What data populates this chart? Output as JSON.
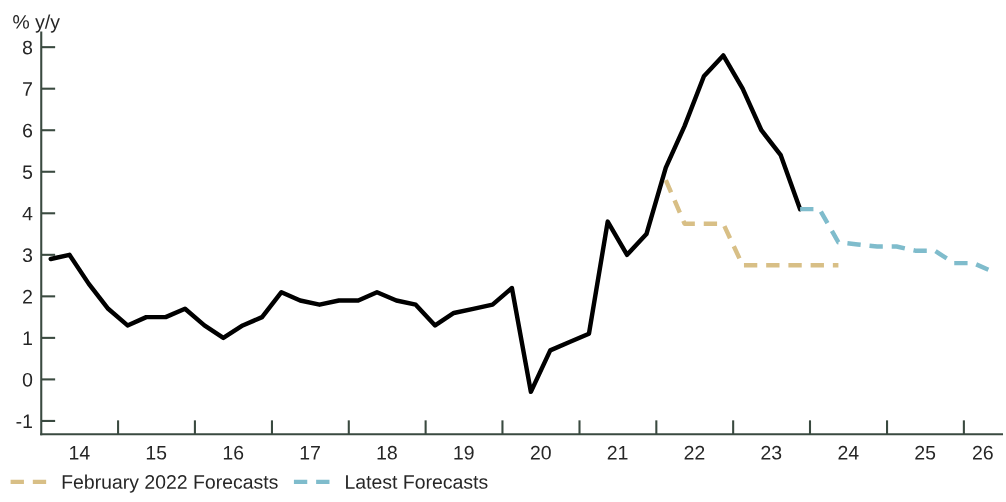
{
  "chart_data": {
    "type": "line",
    "ylabel": "% y/y",
    "xlim": [
      "2014-01-01",
      "2026-07-01"
    ],
    "ylim": [
      -1.32,
      8.35
    ],
    "yticks": [
      -1,
      0,
      1,
      2,
      3,
      4,
      5,
      6,
      7,
      8
    ],
    "xticks": [
      {
        "value": "2015-01-01",
        "label": null
      },
      {
        "value": "2016-01-01",
        "label": null
      },
      {
        "value": "2017-01-01",
        "label": null
      },
      {
        "value": "2018-01-01",
        "label": null
      },
      {
        "value": "2019-01-01",
        "label": null
      },
      {
        "value": "2020-01-01",
        "label": null
      },
      {
        "value": "2021-01-01",
        "label": null
      },
      {
        "value": "2022-01-01",
        "label": null
      },
      {
        "value": "2023-01-01",
        "label": null
      },
      {
        "value": "2024-01-01",
        "label": null
      },
      {
        "value": "2025-01-01",
        "label": null
      },
      {
        "value": "2026-01-01",
        "label": null
      },
      {
        "value": "2014-07-01",
        "label": "14"
      },
      {
        "value": "2015-07-01",
        "label": "15"
      },
      {
        "value": "2016-07-01",
        "label": "16"
      },
      {
        "value": "2017-07-01",
        "label": "17"
      },
      {
        "value": "2018-07-01",
        "label": "18"
      },
      {
        "value": "2019-07-01",
        "label": "19"
      },
      {
        "value": "2020-07-01",
        "label": "20"
      },
      {
        "value": "2021-07-01",
        "label": "21"
      },
      {
        "value": "2022-07-01",
        "label": "22"
      },
      {
        "value": "2023-07-01",
        "label": "23"
      },
      {
        "value": "2024-07-01",
        "label": "24"
      },
      {
        "value": "2025-07-01",
        "label": "25"
      },
      {
        "value": "2026-04-01",
        "label": "26"
      }
    ],
    "grid": false,
    "legend": "bottom",
    "series": [
      {
        "color": "#000000",
        "line_style": "solid",
        "x": [
          "2014-02-15",
          "2014-05-15",
          "2014-08-15",
          "2014-11-15",
          "2015-02-15",
          "2015-05-15",
          "2015-08-15",
          "2015-11-15",
          "2016-02-15",
          "2016-05-15",
          "2016-08-15",
          "2016-11-15",
          "2017-02-15",
          "2017-05-15",
          "2017-08-15",
          "2017-11-15",
          "2018-02-15",
          "2018-05-15",
          "2018-08-15",
          "2018-11-15",
          "2019-02-15",
          "2019-05-15",
          "2019-08-15",
          "2019-11-15",
          "2020-02-15",
          "2020-05-15",
          "2020-08-15",
          "2020-11-15",
          "2021-02-15",
          "2021-05-15",
          "2021-08-15",
          "2021-11-15",
          "2022-02-15",
          "2022-05-15",
          "2022-08-15",
          "2022-11-15",
          "2023-02-15",
          "2023-05-15",
          "2023-08-15",
          "2023-11-15"
        ],
        "values": [
          2.9,
          3.0,
          2.3,
          1.7,
          1.3,
          1.5,
          1.5,
          1.7,
          1.3,
          1.0,
          1.3,
          1.5,
          2.1,
          1.9,
          1.8,
          1.9,
          1.9,
          2.1,
          1.9,
          1.8,
          1.3,
          1.6,
          1.7,
          1.8,
          2.2,
          -0.3,
          0.7,
          0.9,
          1.1,
          3.8,
          3.0,
          3.5,
          5.1,
          6.1,
          7.3,
          7.8,
          7.0,
          6.0,
          5.4,
          4.1
        ]
      },
      {
        "name": "February 2022 Forecasts",
        "color": "#d8bf86",
        "line_style": "dashed",
        "x": [
          "2022-02-15",
          "2022-05-15",
          "2022-08-15",
          "2022-11-15",
          "2023-02-15",
          "2023-05-15",
          "2023-08-15",
          "2023-11-15",
          "2024-02-15",
          "2024-05-15"
        ],
        "values": [
          4.8,
          3.75,
          3.75,
          3.75,
          2.75,
          2.75,
          2.75,
          2.75,
          2.75,
          2.75
        ]
      },
      {
        "name": "Latest Forecasts",
        "color": "#7fbccc",
        "line_style": "dashed",
        "x": [
          "2023-11-15",
          "2024-02-15",
          "2024-05-15",
          "2024-08-15",
          "2024-11-15",
          "2025-02-15",
          "2025-05-15",
          "2025-08-15",
          "2025-11-15",
          "2026-02-15",
          "2026-05-15"
        ],
        "values": [
          4.1,
          4.1,
          3.3,
          3.25,
          3.2,
          3.2,
          3.1,
          3.1,
          2.8,
          2.8,
          2.6
        ]
      }
    ]
  }
}
